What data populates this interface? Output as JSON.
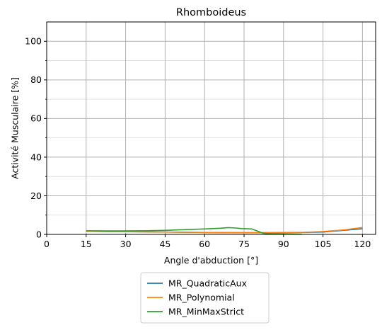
{
  "chart_data": {
    "type": "line",
    "title": "Rhomboideus",
    "xlabel": "Angle d'abduction [°]",
    "ylabel": "Activité Musculaire [%]",
    "xlim": [
      0,
      125
    ],
    "ylim": [
      0,
      110
    ],
    "xticks": [
      0,
      15,
      30,
      45,
      60,
      75,
      90,
      105,
      120
    ],
    "yticks": [
      0,
      20,
      40,
      60,
      80,
      100
    ],
    "yminor_step": 10,
    "grid": true,
    "legend_position": "below",
    "series": [
      {
        "name": "MR_QuadraticAux",
        "color": "#1f77b4",
        "x": [
          15,
          30,
          45,
          60,
          75,
          90,
          105,
          120
        ],
        "y": [
          1.6,
          1.4,
          1.2,
          1.0,
          0.9,
          0.8,
          1.2,
          2.9
        ]
      },
      {
        "name": "MR_Polynomial",
        "color": "#ff7f0e",
        "x": [
          15,
          22,
          30,
          38,
          45,
          53,
          60,
          68,
          75,
          83,
          90,
          98,
          105,
          113,
          120
        ],
        "y": [
          1.6,
          1.5,
          1.4,
          1.3,
          1.2,
          1.1,
          1.0,
          0.9,
          0.9,
          0.9,
          1.0,
          1.1,
          1.5,
          2.3,
          3.6
        ]
      },
      {
        "name": "MR_MinMaxStrict",
        "color": "#2ca02c",
        "x": [
          15,
          22,
          30,
          38,
          45,
          53,
          60,
          66,
          69,
          72,
          74,
          76,
          78,
          80,
          82,
          84,
          86,
          88,
          90,
          93,
          97
        ],
        "y": [
          1.9,
          1.8,
          1.8,
          1.9,
          2.1,
          2.5,
          2.8,
          3.2,
          3.5,
          3.3,
          3.0,
          2.9,
          2.8,
          1.8,
          0.7,
          0.3,
          0.2,
          0.2,
          0.1,
          0.1,
          0.1
        ]
      }
    ]
  }
}
